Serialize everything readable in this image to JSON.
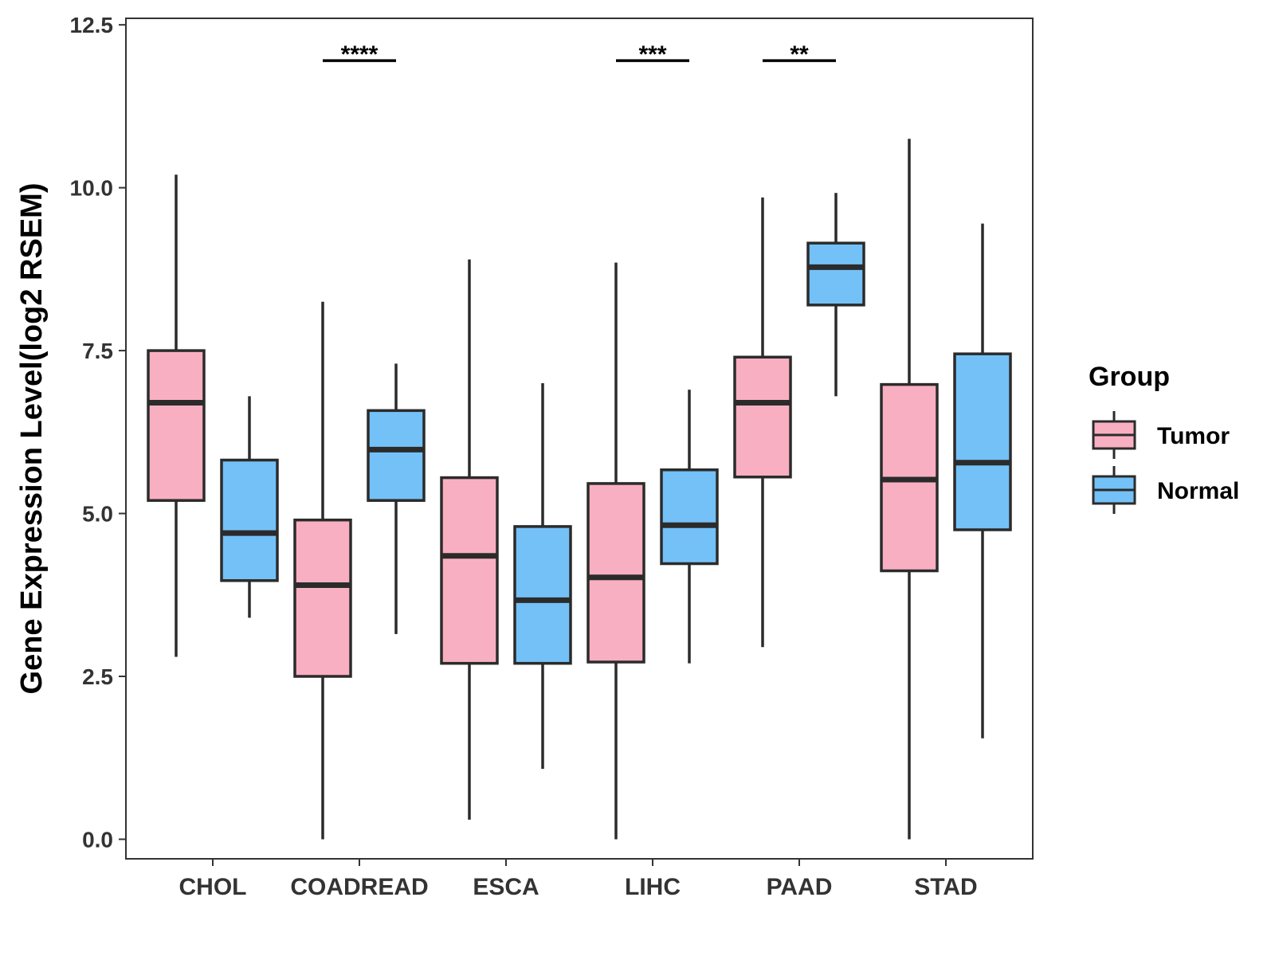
{
  "chart_data": {
    "type": "boxplot",
    "title": "",
    "xlabel": "",
    "ylabel": "Gene Expression Level(log2 RSEM)",
    "ylim": [
      -0.3,
      12.6
    ],
    "yticks": [
      "0.0",
      "2.5",
      "5.0",
      "7.5",
      "10.0",
      "12.5"
    ],
    "ytick_values": [
      0,
      2.5,
      5,
      7.5,
      10,
      12.5
    ],
    "categories": [
      "CHOL",
      "COADREAD",
      "ESCA",
      "LIHC",
      "PAAD",
      "STAD"
    ],
    "legend": {
      "title": "Group",
      "position": "right",
      "items": [
        {
          "label": "Tumor",
          "color": "#F9AFC2"
        },
        {
          "label": "Normal",
          "color": "#74C1F7"
        }
      ]
    },
    "series": [
      {
        "name": "Tumor",
        "color": "#F9AFC2",
        "boxes": [
          {
            "min": 2.8,
            "q1": 5.2,
            "median": 6.7,
            "q3": 7.5,
            "max": 10.2
          },
          {
            "min": 0.0,
            "q1": 2.5,
            "median": 3.9,
            "q3": 4.9,
            "max": 8.25
          },
          {
            "min": 0.3,
            "q1": 2.7,
            "median": 4.35,
            "q3": 5.55,
            "max": 8.9
          },
          {
            "min": 0.0,
            "q1": 2.72,
            "median": 4.02,
            "q3": 5.46,
            "max": 8.85
          },
          {
            "min": 2.95,
            "q1": 5.56,
            "median": 6.7,
            "q3": 7.4,
            "max": 9.85
          },
          {
            "min": 0.0,
            "q1": 4.12,
            "median": 5.52,
            "q3": 6.98,
            "max": 10.75
          }
        ]
      },
      {
        "name": "Normal",
        "color": "#74C1F7",
        "boxes": [
          {
            "min": 3.4,
            "q1": 3.97,
            "median": 4.7,
            "q3": 5.82,
            "max": 6.8
          },
          {
            "min": 3.15,
            "q1": 5.2,
            "median": 5.98,
            "q3": 6.58,
            "max": 7.3
          },
          {
            "min": 1.08,
            "q1": 2.7,
            "median": 3.67,
            "q3": 4.8,
            "max": 7.0
          },
          {
            "min": 2.7,
            "q1": 4.23,
            "median": 4.82,
            "q3": 5.67,
            "max": 6.9
          },
          {
            "min": 6.8,
            "q1": 8.2,
            "median": 8.78,
            "q3": 9.15,
            "max": 9.92
          },
          {
            "min": 1.55,
            "q1": 4.75,
            "median": 5.78,
            "q3": 7.45,
            "max": 9.45
          }
        ]
      }
    ],
    "significance": [
      {
        "category": "COADREAD",
        "label": "****",
        "y": 11.95
      },
      {
        "category": "LIHC",
        "label": "***",
        "y": 11.95
      },
      {
        "category": "PAAD",
        "label": "**",
        "y": 11.95
      }
    ]
  }
}
